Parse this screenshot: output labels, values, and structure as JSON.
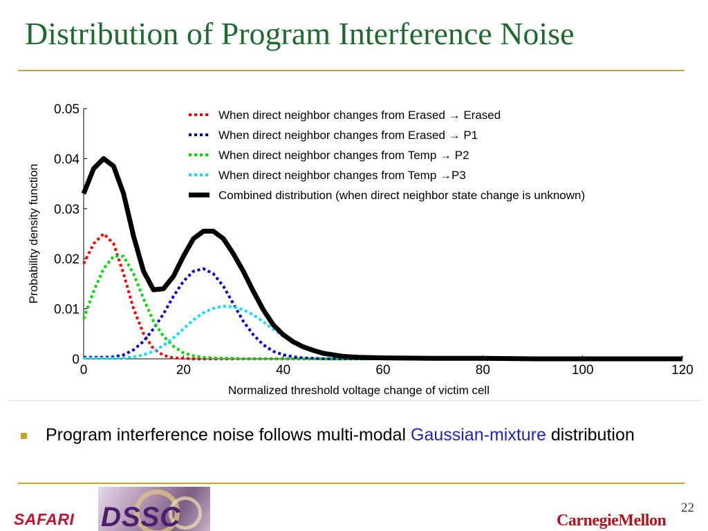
{
  "slide": {
    "title": "Distribution of Program Interference Noise",
    "page_number": "22",
    "bullet_text": "Program interference noise follows multi-modal ",
    "bullet_highlight": "Gaussian-mixture",
    "bullet_text_end": " distribution",
    "accent_color": "#c9a227",
    "title_color": "#1e6b2e",
    "highlight_color": "#1f1fcf"
  },
  "logos": {
    "left": "SAFARI",
    "middle": "DSSC",
    "right": "CarnegieMellon"
  },
  "chart_data": {
    "type": "line",
    "title": "",
    "xlabel": "Normalized threshold voltage change of victim cell",
    "ylabel": "Probability density function",
    "xlim": [
      0,
      120
    ],
    "ylim": [
      0,
      0.05
    ],
    "xticks": [
      0,
      20,
      40,
      60,
      80,
      100,
      120
    ],
    "yticks": [
      0,
      0.01,
      0.02,
      0.03,
      0.04,
      0.05
    ],
    "xtick_labels": [
      "0",
      "20",
      "40",
      "60",
      "80",
      "100",
      "120"
    ],
    "ytick_labels": [
      "0",
      "0.01",
      "0.02",
      "0.03",
      "0.04",
      "0.05"
    ],
    "grid": false,
    "legend_position": "top-right",
    "x": [
      0,
      2,
      4,
      6,
      8,
      10,
      12,
      14,
      16,
      18,
      20,
      22,
      24,
      26,
      28,
      30,
      32,
      34,
      36,
      38,
      40,
      42,
      44,
      46,
      48,
      50,
      52,
      55,
      60,
      70,
      80,
      90,
      100,
      110,
      120
    ],
    "series": [
      {
        "name": "When direct neighbor changes from Erased → Erased",
        "color": "#ff0000",
        "style": "dotted",
        "values": [
          0.019,
          0.023,
          0.025,
          0.023,
          0.017,
          0.01,
          0.005,
          0.002,
          0.0007,
          0.0002,
          0.0001,
          0,
          0,
          0,
          0,
          0,
          0,
          0,
          0,
          0,
          0,
          0,
          0,
          0,
          0,
          0,
          0,
          0,
          0,
          0,
          0,
          0,
          0,
          0,
          0
        ]
      },
      {
        "name": "When direct neighbor changes from Erased → P1",
        "color": "#0000dd",
        "style": "dotted",
        "values": [
          0.0003,
          0.0003,
          0.0003,
          0.0004,
          0.0008,
          0.0018,
          0.0035,
          0.006,
          0.009,
          0.0125,
          0.0155,
          0.0175,
          0.018,
          0.017,
          0.0145,
          0.011,
          0.0075,
          0.0048,
          0.0028,
          0.0015,
          0.0008,
          0.0004,
          0.0002,
          0.0001,
          0,
          0,
          0,
          0,
          0,
          0,
          0,
          0,
          0,
          0,
          0
        ]
      },
      {
        "name": "When direct neighbor changes from Temp → P2",
        "color": "#00dd00",
        "style": "dotted",
        "values": [
          0.008,
          0.0135,
          0.018,
          0.0205,
          0.0205,
          0.017,
          0.012,
          0.0075,
          0.0045,
          0.0025,
          0.0012,
          0.0006,
          0.0003,
          0.0002,
          0.0001,
          0.0001,
          0,
          0,
          0,
          0,
          0,
          0,
          0,
          0,
          0,
          0,
          0,
          0,
          0,
          0,
          0,
          0,
          0,
          0,
          0
        ]
      },
      {
        "name": "When direct neighbor changes from Temp →P3",
        "color": "#00e5ff",
        "style": "dotted",
        "values": [
          0.0001,
          0.0001,
          0.0001,
          0.0001,
          0.0002,
          0.0004,
          0.0008,
          0.0015,
          0.0027,
          0.0042,
          0.006,
          0.0078,
          0.0092,
          0.0101,
          0.0105,
          0.0104,
          0.0098,
          0.0088,
          0.0074,
          0.0059,
          0.0045,
          0.0033,
          0.0023,
          0.0016,
          0.001,
          0.0007,
          0.0005,
          0.0003,
          0.0001,
          0,
          0,
          0,
          0,
          0,
          0
        ]
      },
      {
        "name": "Combined distribution (when direct neighbor state change is unknown)",
        "color": "#000000",
        "style": "solid",
        "values": [
          0.033,
          0.038,
          0.04,
          0.0385,
          0.033,
          0.0245,
          0.0175,
          0.0138,
          0.014,
          0.0165,
          0.0205,
          0.024,
          0.0255,
          0.0255,
          0.024,
          0.021,
          0.0175,
          0.0135,
          0.0098,
          0.0068,
          0.0048,
          0.0034,
          0.0024,
          0.0017,
          0.0011,
          0.0008,
          0.0005,
          0.0003,
          0.0002,
          0.0001,
          0.0001,
          0,
          0,
          0,
          0
        ]
      }
    ]
  }
}
